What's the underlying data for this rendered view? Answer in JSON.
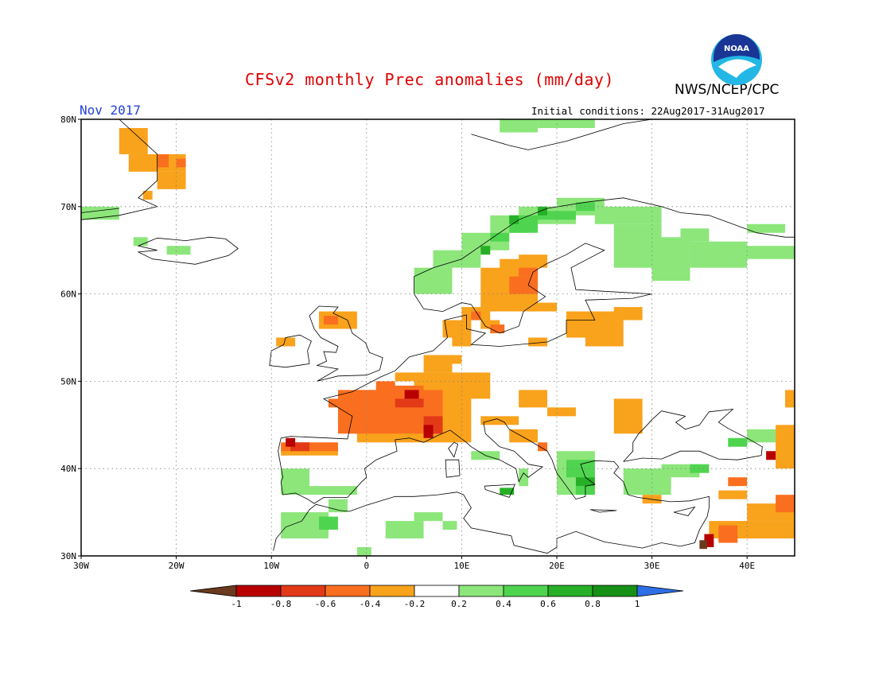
{
  "header": {
    "title": "CFSv2 monthly Prec anomalies (mm/day)",
    "agency": "NWS/NCEP/CPC",
    "period": "Nov 2017",
    "initial_conditions": "Initial conditions: 22Aug2017-31Aug2017",
    "logo_text": "NOAA",
    "logo": "noaa-logo"
  },
  "map": {
    "projection": "equirectangular",
    "lon_range": [
      -30,
      45
    ],
    "lat_range": [
      30,
      80
    ],
    "grid": "dotted",
    "lat_ticks": [
      {
        "value": 80,
        "label": "80N"
      },
      {
        "value": 70,
        "label": "70N"
      },
      {
        "value": 60,
        "label": "60N"
      },
      {
        "value": 50,
        "label": "50N"
      },
      {
        "value": 40,
        "label": "40N"
      },
      {
        "value": 30,
        "label": "30N"
      }
    ],
    "lon_ticks": [
      {
        "value": -30,
        "label": "30W"
      },
      {
        "value": -20,
        "label": "20W"
      },
      {
        "value": -10,
        "label": "10W"
      },
      {
        "value": 0,
        "label": "0"
      },
      {
        "value": 10,
        "label": "10E"
      },
      {
        "value": 20,
        "label": "20E"
      },
      {
        "value": 30,
        "label": "30E"
      },
      {
        "value": 40,
        "label": "40E"
      }
    ]
  },
  "colorbar": {
    "labels": [
      "-1",
      "-0.8",
      "-0.6",
      "-0.4",
      "-0.2",
      "0.2",
      "0.4",
      "0.6",
      "0.8",
      "1"
    ],
    "colors": [
      "#6b3a1e",
      "#b80000",
      "#e23a17",
      "#fa6f1f",
      "#f9a21c",
      "#ffffff",
      "#8ce67a",
      "#4fd44f",
      "#27b027",
      "#169116",
      "#2e6ee6"
    ]
  },
  "anomaly_regions": [
    {
      "name": "greenland",
      "level": "-0.2..-0.4",
      "color": "#f9a21c",
      "cells": [
        [
          -26,
          76,
          3,
          3
        ],
        [
          -25,
          74,
          6,
          2
        ],
        [
          -22,
          72,
          3,
          2
        ],
        [
          -23.5,
          70.8,
          1,
          1
        ]
      ]
    },
    {
      "name": "greenland-core",
      "level": "-0.4..-0.6",
      "color": "#fa6f1f",
      "cells": [
        [
          -22,
          74.5,
          1.2,
          1.5
        ],
        [
          -20,
          74.5,
          1,
          1
        ]
      ]
    },
    {
      "name": "nw-greenland-green",
      "level": "0.2..0.4",
      "color": "#8ce67a",
      "cells": [
        [
          -30,
          68.5,
          4,
          1.5
        ]
      ]
    },
    {
      "name": "iceland",
      "level": "0.2..0.4",
      "color": "#8ce67a",
      "cells": [
        [
          -24.5,
          65.5,
          1.5,
          1
        ],
        [
          -21,
          64.5,
          2.5,
          1
        ]
      ]
    },
    {
      "name": "scandinavia-coast",
      "level": "0.2..0.4",
      "color": "#8ce67a",
      "cells": [
        [
          5,
          60,
          4,
          3
        ],
        [
          7,
          63,
          5,
          2
        ],
        [
          10,
          65,
          5,
          2
        ],
        [
          13,
          67,
          4,
          2
        ],
        [
          16,
          68,
          6,
          2
        ],
        [
          20,
          69,
          5,
          2
        ],
        [
          24,
          68,
          7,
          2
        ]
      ]
    },
    {
      "name": "scandinavia-coast-strong",
      "level": "0.4..0.6",
      "color": "#4fd44f",
      "cells": [
        [
          13,
          66,
          2,
          1
        ],
        [
          15,
          67,
          3,
          2
        ],
        [
          18,
          68.5,
          4,
          1
        ],
        [
          22,
          69.5,
          2,
          1
        ]
      ]
    },
    {
      "name": "scandinavia-coast-very",
      "level": "0.6..0.8",
      "color": "#27b027",
      "cells": [
        [
          12,
          64.5,
          1,
          1
        ],
        [
          15,
          68,
          1,
          1
        ],
        [
          18,
          69,
          1,
          1
        ]
      ]
    },
    {
      "name": "russia-north",
      "level": "0.2..0.4",
      "color": "#8ce67a",
      "cells": [
        [
          26,
          63,
          5,
          5
        ],
        [
          30,
          61.5,
          4,
          5
        ],
        [
          34,
          63,
          6,
          3
        ],
        [
          38,
          64,
          7,
          1.5
        ],
        [
          33,
          66,
          3,
          1.5
        ],
        [
          40,
          67,
          4,
          1
        ]
      ]
    },
    {
      "name": "svalbard",
      "level": "0.2..0.4",
      "color": "#8ce67a",
      "cells": [
        [
          14,
          78.5,
          4,
          1.5
        ],
        [
          18,
          79,
          6,
          1
        ]
      ]
    },
    {
      "name": "sweden-dry",
      "level": "-0.2..-0.4",
      "color": "#f9a21c",
      "cells": [
        [
          12,
          58,
          6,
          5
        ],
        [
          14,
          62,
          4,
          2
        ],
        [
          16,
          63,
          3,
          1.5
        ],
        [
          10,
          57,
          3,
          1.5
        ],
        [
          8,
          55,
          3,
          2
        ],
        [
          12,
          56,
          2,
          1
        ],
        [
          17,
          58,
          3,
          1
        ]
      ]
    },
    {
      "name": "sweden-core",
      "level": "-0.4..-0.6",
      "color": "#fa6f1f",
      "cells": [
        [
          15,
          60,
          3,
          2
        ],
        [
          16,
          62,
          2,
          1
        ],
        [
          11,
          57,
          1,
          1
        ],
        [
          13,
          55.5,
          1.5,
          1
        ]
      ]
    },
    {
      "name": "baltic-dry",
      "level": "-0.2..-0.4",
      "color": "#f9a21c",
      "cells": [
        [
          21,
          55,
          6,
          3
        ],
        [
          23,
          54,
          4,
          1
        ],
        [
          26,
          57,
          3,
          1.5
        ],
        [
          17,
          54,
          2,
          1
        ]
      ]
    },
    {
      "name": "scotland",
      "level": "-0.2..-0.4",
      "color": "#f9a21c",
      "cells": [
        [
          -5,
          56,
          4,
          2
        ],
        [
          -9.5,
          54,
          2,
          1
        ]
      ]
    },
    {
      "name": "scotland-core",
      "level": "-0.4..-0.6",
      "color": "#fa6f1f",
      "cells": [
        [
          -4.5,
          56.5,
          1.5,
          1
        ]
      ]
    },
    {
      "name": "france-dry",
      "level": "-0.2..-0.4",
      "color": "#f9a21c",
      "cells": [
        [
          -1,
          43,
          12,
          6
        ],
        [
          5,
          48,
          8,
          3
        ],
        [
          6,
          51,
          3,
          2
        ],
        [
          8,
          52,
          2,
          1
        ],
        [
          12,
          45,
          4,
          1
        ],
        [
          -9,
          41.5,
          6,
          1
        ],
        [
          3,
          50,
          3,
          1
        ],
        [
          9,
          54,
          2,
          1
        ]
      ]
    },
    {
      "name": "france-mid",
      "level": "-0.4..-0.6",
      "color": "#fa6f1f",
      "cells": [
        [
          -3,
          44,
          11,
          5
        ],
        [
          1,
          48,
          5,
          1.5
        ],
        [
          -4,
          47,
          2,
          1
        ],
        [
          -9,
          42,
          6,
          1
        ],
        [
          1,
          49,
          2,
          1
        ]
      ]
    },
    {
      "name": "france-core",
      "level": "-0.6..-0.8",
      "color": "#e23a17",
      "cells": [
        [
          3,
          47,
          3,
          1
        ],
        [
          6,
          44,
          2,
          2
        ],
        [
          -8,
          42,
          2,
          1
        ]
      ]
    },
    {
      "name": "france-very",
      "level": "-0.8..-1",
      "color": "#b80000",
      "cells": [
        [
          6,
          43.5,
          1,
          1.5
        ],
        [
          4,
          48,
          1.5,
          1
        ],
        [
          -8.5,
          42.5,
          1,
          1
        ]
      ]
    },
    {
      "name": "balkan-dry",
      "level": "-0.2..-0.4",
      "color": "#f9a21c",
      "cells": [
        [
          16,
          47,
          3,
          2
        ],
        [
          19,
          46,
          3,
          1
        ],
        [
          26,
          44,
          3,
          4
        ],
        [
          15,
          43,
          3,
          1.5
        ]
      ]
    },
    {
      "name": "balkan-dry-core",
      "level": "-0.4..-0.6",
      "color": "#fa6f1f",
      "cells": [
        [
          18,
          42,
          1,
          1
        ]
      ]
    },
    {
      "name": "balkan-wet",
      "level": "0.2..0.4",
      "color": "#8ce67a",
      "cells": [
        [
          20,
          37,
          4,
          5
        ],
        [
          27,
          37,
          5,
          3
        ],
        [
          31,
          39,
          4,
          1.5
        ],
        [
          40,
          43,
          3,
          1.5
        ],
        [
          11,
          41,
          3,
          1
        ],
        [
          16,
          38,
          1,
          2
        ]
      ]
    },
    {
      "name": "balkan-wet-strong",
      "level": "0.4..0.6",
      "color": "#4fd44f",
      "cells": [
        [
          21,
          39,
          3,
          2
        ],
        [
          22,
          37,
          2,
          1
        ],
        [
          34,
          39.5,
          2,
          1
        ],
        [
          38,
          42.5,
          2,
          1
        ]
      ]
    },
    {
      "name": "balkan-wet-very",
      "level": "0.6..0.8",
      "color": "#27b027",
      "cells": [
        [
          22,
          38,
          2,
          1
        ],
        [
          14,
          37,
          1.5,
          0.8
        ]
      ]
    },
    {
      "name": "turkey-east-dry",
      "level": "-0.2..-0.4",
      "color": "#f9a21c",
      "cells": [
        [
          40,
          34,
          5,
          2
        ],
        [
          36,
          32,
          9,
          2
        ],
        [
          43,
          40,
          2,
          5
        ],
        [
          44,
          47,
          1,
          2
        ],
        [
          37,
          36.5,
          3,
          1
        ],
        [
          29,
          36,
          2,
          1
        ]
      ]
    },
    {
      "name": "turkey-east-core",
      "level": "-0.4..-0.6",
      "color": "#fa6f1f",
      "cells": [
        [
          43,
          35,
          2,
          2
        ],
        [
          38,
          38,
          2,
          1
        ],
        [
          37,
          31.5,
          2,
          2
        ]
      ]
    },
    {
      "name": "turkey-east-very",
      "level": "-0.8..-1",
      "color": "#b80000",
      "cells": [
        [
          35.5,
          31,
          1,
          1.5
        ],
        [
          42,
          41,
          1,
          1
        ]
      ]
    },
    {
      "name": "turkey-east-brown",
      "level": "<-1",
      "color": "#6b3a1e",
      "cells": [
        [
          35,
          30.8,
          0.8,
          1
        ]
      ]
    },
    {
      "name": "iberia-wet",
      "level": "0.2..0.4",
      "color": "#8ce67a",
      "cells": [
        [
          -9,
          37,
          3,
          3
        ],
        [
          -6,
          37,
          5,
          1
        ],
        [
          -4,
          35,
          2,
          1.5
        ]
      ]
    },
    {
      "name": "n-africa-wet",
      "level": "0.2..0.4",
      "color": "#8ce67a",
      "cells": [
        [
          -9,
          32,
          5,
          3
        ],
        [
          2,
          32,
          4,
          2
        ],
        [
          5,
          34,
          3,
          1
        ],
        [
          -1,
          30,
          1.5,
          1
        ],
        [
          8,
          33,
          1.5,
          1
        ]
      ]
    },
    {
      "name": "n-africa-wet-strong",
      "level": "0.4..0.6",
      "color": "#4fd44f",
      "cells": [
        [
          -5,
          33,
          2,
          1.5
        ]
      ]
    }
  ]
}
